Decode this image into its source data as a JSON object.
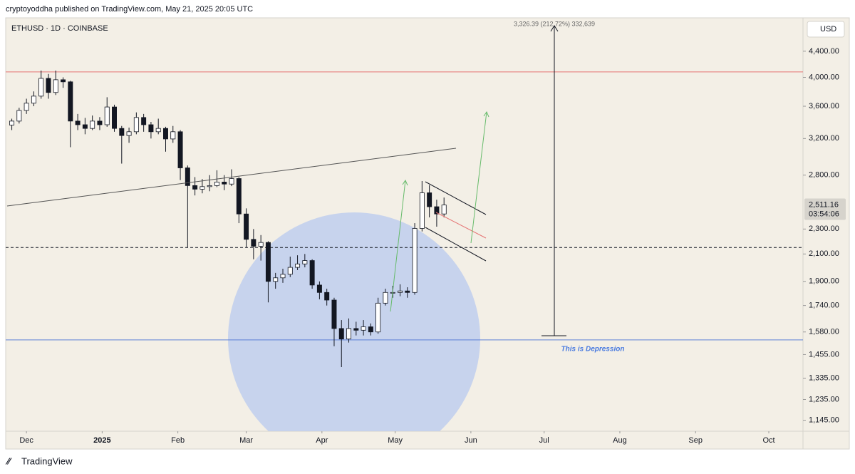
{
  "header": {
    "publisher": "cryptoyoddha published on TradingView.com, May 21, 2025 20:05 UTC",
    "symbol": "ETHUSD · 1D · COINBASE",
    "currency": "USD",
    "brand": "TradingView"
  },
  "chart_data": {
    "type": "candlestick",
    "x": [
      -6,
      -3,
      0,
      3,
      6,
      9,
      12,
      15,
      18,
      21,
      24,
      27,
      30,
      33,
      36,
      39,
      42,
      45,
      48,
      51,
      54,
      57,
      60,
      63,
      66,
      69,
      72,
      75,
      78,
      81,
      84,
      87,
      90,
      93,
      96,
      99,
      102,
      105,
      108,
      111,
      114,
      117,
      120,
      123,
      126,
      129,
      132,
      135,
      138,
      141,
      144,
      147,
      150,
      153,
      156,
      159,
      162,
      165,
      168,
      171
    ],
    "open": [
      3360,
      3410,
      3545,
      3640,
      3735,
      3985,
      3785,
      3965,
      3935,
      3410,
      3365,
      3320,
      3410,
      3365,
      3590,
      3320,
      3235,
      3280,
      3455,
      3365,
      3280,
      3320,
      3195,
      3280,
      2875,
      2695,
      2660,
      2685,
      2695,
      2730,
      2710,
      2765,
      2430,
      2215,
      2160,
      2190,
      1900,
      1925,
      1950,
      2000,
      2025,
      2050,
      1875,
      1825,
      1775,
      1600,
      1540,
      1600,
      1590,
      1610,
      1580,
      1755,
      1825,
      1825,
      1835,
      1825,
      2305,
      2625,
      2495,
      2430
    ],
    "high": [
      3440,
      3580,
      3700,
      3800,
      4100,
      4050,
      4100,
      4000,
      3950,
      3500,
      3450,
      3480,
      3460,
      3720,
      3620,
      3350,
      3330,
      3520,
      3500,
      3400,
      3440,
      3340,
      3350,
      3300,
      2900,
      2780,
      2760,
      2800,
      2850,
      2800,
      2860,
      2780,
      2480,
      2300,
      2250,
      2200,
      1960,
      1990,
      2080,
      2090,
      2100,
      2060,
      1900,
      1850,
      1790,
      1650,
      1660,
      1640,
      1650,
      1630,
      1790,
      1850,
      1870,
      1880,
      1860,
      2350,
      2740,
      2700,
      2560,
      2580
    ],
    "low": [
      3300,
      3380,
      3500,
      3600,
      3700,
      3700,
      3750,
      3850,
      3100,
      3300,
      3250,
      3300,
      3300,
      3340,
      3280,
      2920,
      3150,
      3250,
      3280,
      3200,
      3250,
      3050,
      3150,
      2750,
      2150,
      2600,
      2620,
      2640,
      2680,
      2650,
      2690,
      2350,
      2150,
      2060,
      2050,
      1760,
      1850,
      1890,
      1930,
      1980,
      2000,
      1850,
      1780,
      1740,
      1500,
      1390,
      1520,
      1560,
      1560,
      1560,
      1570,
      1740,
      1790,
      1800,
      1790,
      1810,
      2280,
      2400,
      2320,
      2400
    ],
    "close": [
      3410,
      3545,
      3640,
      3735,
      3985,
      3785,
      3965,
      3935,
      3410,
      3365,
      3320,
      3410,
      3365,
      3590,
      3320,
      3235,
      3280,
      3455,
      3365,
      3280,
      3320,
      3195,
      3280,
      2875,
      2695,
      2660,
      2685,
      2695,
      2730,
      2710,
      2765,
      2430,
      2215,
      2160,
      2190,
      1900,
      1925,
      1950,
      2000,
      2025,
      2050,
      1875,
      1825,
      1775,
      1600,
      1540,
      1600,
      1590,
      1610,
      1580,
      1755,
      1825,
      1825,
      1835,
      1825,
      2305,
      2625,
      2495,
      2430,
      2511.16
    ],
    "up_color": "#ffffff",
    "down_color": "#131722",
    "log_scale": true,
    "xlim": [
      -8.5,
      318
    ],
    "xticks": [
      {
        "value": 0,
        "label": "Dec"
      },
      {
        "value": 31,
        "label": "2025"
      },
      {
        "value": 62,
        "label": "Feb"
      },
      {
        "value": 90,
        "label": "Mar"
      },
      {
        "value": 121,
        "label": "Apr"
      },
      {
        "value": 151,
        "label": "May"
      },
      {
        "value": 182,
        "label": "Jun"
      },
      {
        "value": 212,
        "label": "Jul"
      },
      {
        "value": 243,
        "label": "Aug"
      },
      {
        "value": 274,
        "label": "Sep"
      },
      {
        "value": 304,
        "label": "Oct"
      }
    ],
    "ylim": [
      1100,
      4970
    ],
    "yticks": [
      {
        "value": 4400,
        "label": "4,400.00"
      },
      {
        "value": 4000,
        "label": "4,000.00"
      },
      {
        "value": 3600,
        "label": "3,600.00"
      },
      {
        "value": 3200,
        "label": "3,200.00"
      },
      {
        "value": 2800,
        "label": "2,800.00"
      },
      {
        "value": 2300,
        "label": "2,300.00"
      },
      {
        "value": 2100,
        "label": "2,100.00"
      },
      {
        "value": 1900,
        "label": "1,900.00"
      },
      {
        "value": 1740,
        "label": "1,740.00"
      },
      {
        "value": 1580,
        "label": "1,580.00"
      },
      {
        "value": 1455,
        "label": "1,455.00"
      },
      {
        "value": 1335,
        "label": "1,335.00"
      },
      {
        "value": 1235,
        "label": "1,235.00"
      },
      {
        "value": 1145,
        "label": "1,145.00"
      }
    ],
    "levels": [
      {
        "value": 4080,
        "color": "#e57373",
        "dashed": false
      },
      {
        "value": 2150,
        "color": "#131722",
        "dashed": true
      },
      {
        "value": 1535,
        "color": "#5b7fd6",
        "dashed": false
      }
    ],
    "price_tag": {
      "value": 2511.16,
      "label": "2,511.16",
      "countdown": "03:54:06"
    },
    "measure_label": "3,326.39 (212.72%) 332,639",
    "annotation": "This is Depression"
  }
}
